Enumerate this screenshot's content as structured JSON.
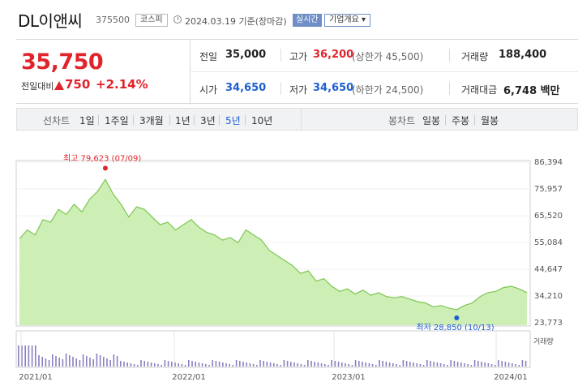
{
  "header": {
    "name": "DL이앤씨",
    "code": "375500",
    "market": "코스피",
    "date": "2024.03.19 기준(장마감)",
    "realtime": "실시간",
    "company_info": "기업개요 ▾"
  },
  "price": {
    "current": "35,750",
    "change_label": "전일대비",
    "change": "750",
    "change_pct": "+2.14%",
    "direction": "up"
  },
  "stats": {
    "prev_close_label": "전일",
    "prev_close": "35,000",
    "high_label": "고가",
    "high": "36,200",
    "upper_limit": "(상한가 45,500)",
    "volume_label": "거래량",
    "volume": "188,400",
    "open_label": "시가",
    "open": "34,650",
    "low_label": "저가",
    "low": "34,650",
    "lower_limit": "(하한가 24,500)",
    "amount_label": "거래대금",
    "amount": "6,748 백만"
  },
  "periods": {
    "label": "선차트",
    "items": [
      "1일",
      "1주일",
      "3개월",
      "1년",
      "3년",
      "5년",
      "10년"
    ],
    "selected": "5년",
    "candle_label": "봉차트",
    "candle_items": [
      "일봉",
      "주봉",
      "월봉"
    ]
  },
  "colors": {
    "up": "#e0242c",
    "down": "#1e5fd0",
    "area_line": "#7cc750",
    "area_fill": "#cdeeb4"
  },
  "chart_data": {
    "type": "area",
    "y_ticks": [
      "86,394",
      "75,957",
      "65,520",
      "55,084",
      "44,647",
      "34,210",
      "23,773"
    ],
    "ylim": [
      23773,
      86394
    ],
    "x_ticks": [
      "2021/01",
      "2022/01",
      "2023/01",
      "2024/01"
    ],
    "x_range": [
      "2021/01",
      "2024/03"
    ],
    "max_label": "최고 79,623 (07/09)",
    "min_label": "최저 28,850 (10/13)",
    "max_value": 79623,
    "min_value": 28850,
    "volume_label": "거래량",
    "series": [
      {
        "values": [
          56500,
          60000,
          58000,
          64000,
          63000,
          68000,
          66000,
          70000,
          67000,
          72000,
          75000,
          79623,
          74000,
          70000,
          65000,
          69000,
          68000,
          65000,
          62000,
          63000,
          60000,
          62000,
          64000,
          61000,
          59000,
          58000,
          56000,
          57000,
          55000,
          60000,
          58000,
          56000,
          52000,
          50000,
          48000,
          46000,
          43000,
          44000,
          40000,
          41000,
          38000,
          36000,
          37000,
          35000,
          36500,
          34500,
          35500,
          34000,
          33500,
          34000,
          33000,
          32000,
          31500,
          30000,
          30500,
          29500,
          28850,
          30500,
          31500,
          34000,
          35500,
          36000,
          37500,
          38000,
          37000,
          35500
        ]
      }
    ]
  }
}
